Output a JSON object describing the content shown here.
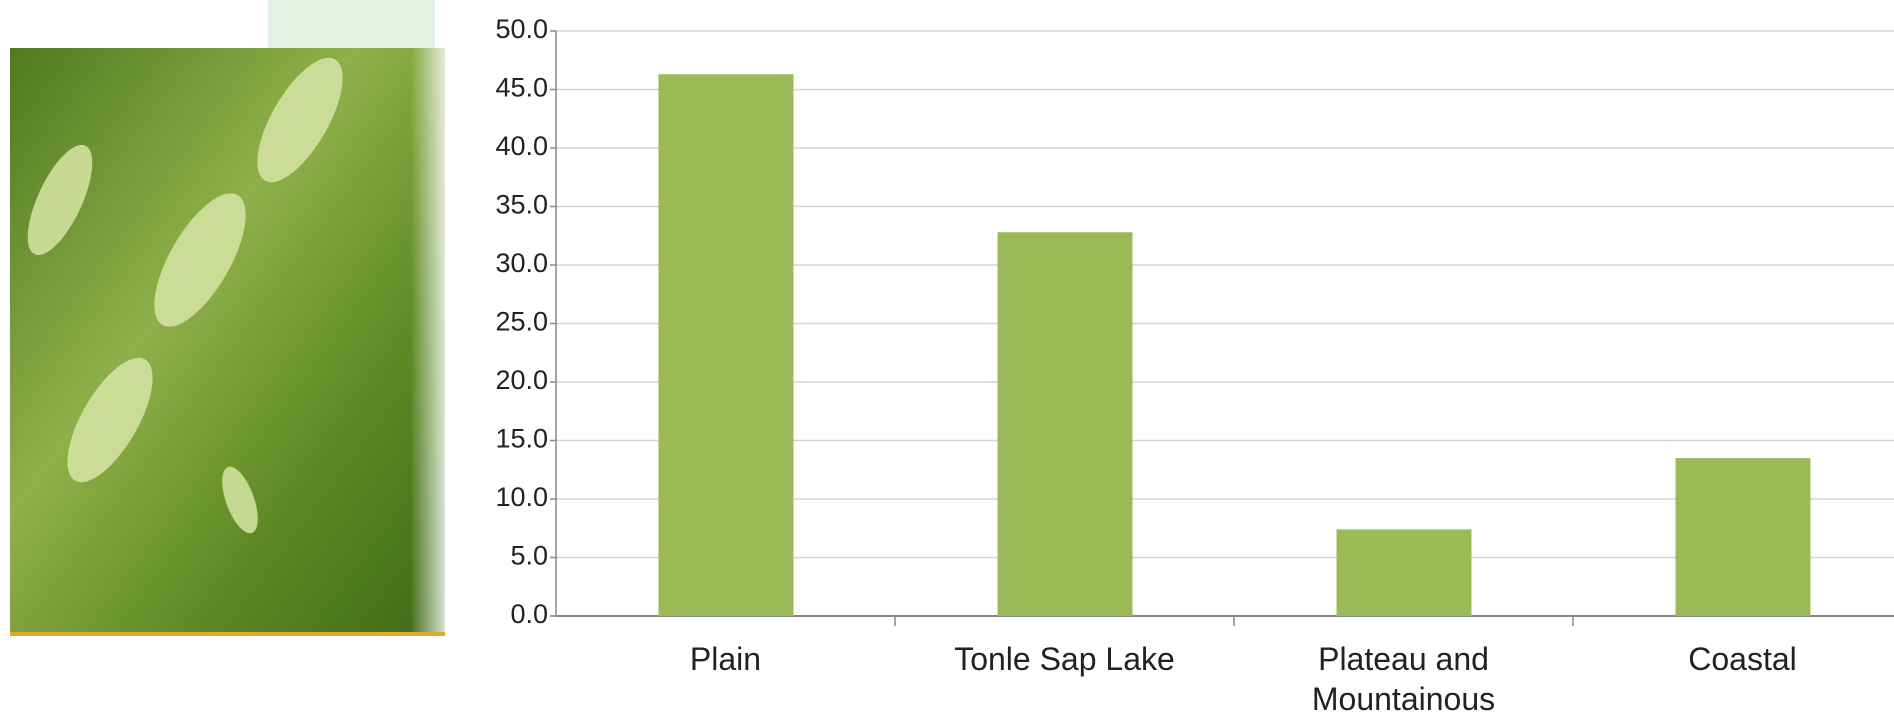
{
  "chart_data": {
    "type": "bar",
    "categories": [
      "Plain",
      "Tonle Sap Lake",
      "Plateau and Mountainous",
      "Coastal"
    ],
    "values": [
      46.3,
      32.8,
      7.4,
      13.5
    ],
    "color": "#9bbb59",
    "ylim": [
      0,
      50
    ],
    "yticks": [
      {
        "value": 0,
        "label": "0.0"
      },
      {
        "value": 5,
        "label": "5.0"
      },
      {
        "value": 10,
        "label": "10.0"
      },
      {
        "value": 15,
        "label": "15.0"
      },
      {
        "value": 20,
        "label": "20.0"
      },
      {
        "value": 25,
        "label": "25.0"
      },
      {
        "value": 30,
        "label": "30.0"
      },
      {
        "value": 35,
        "label": "35.0"
      },
      {
        "value": 40,
        "label": "40.0"
      },
      {
        "value": 45,
        "label": "45.0"
      },
      {
        "value": 50,
        "label": "50.0"
      }
    ],
    "grid": true
  }
}
